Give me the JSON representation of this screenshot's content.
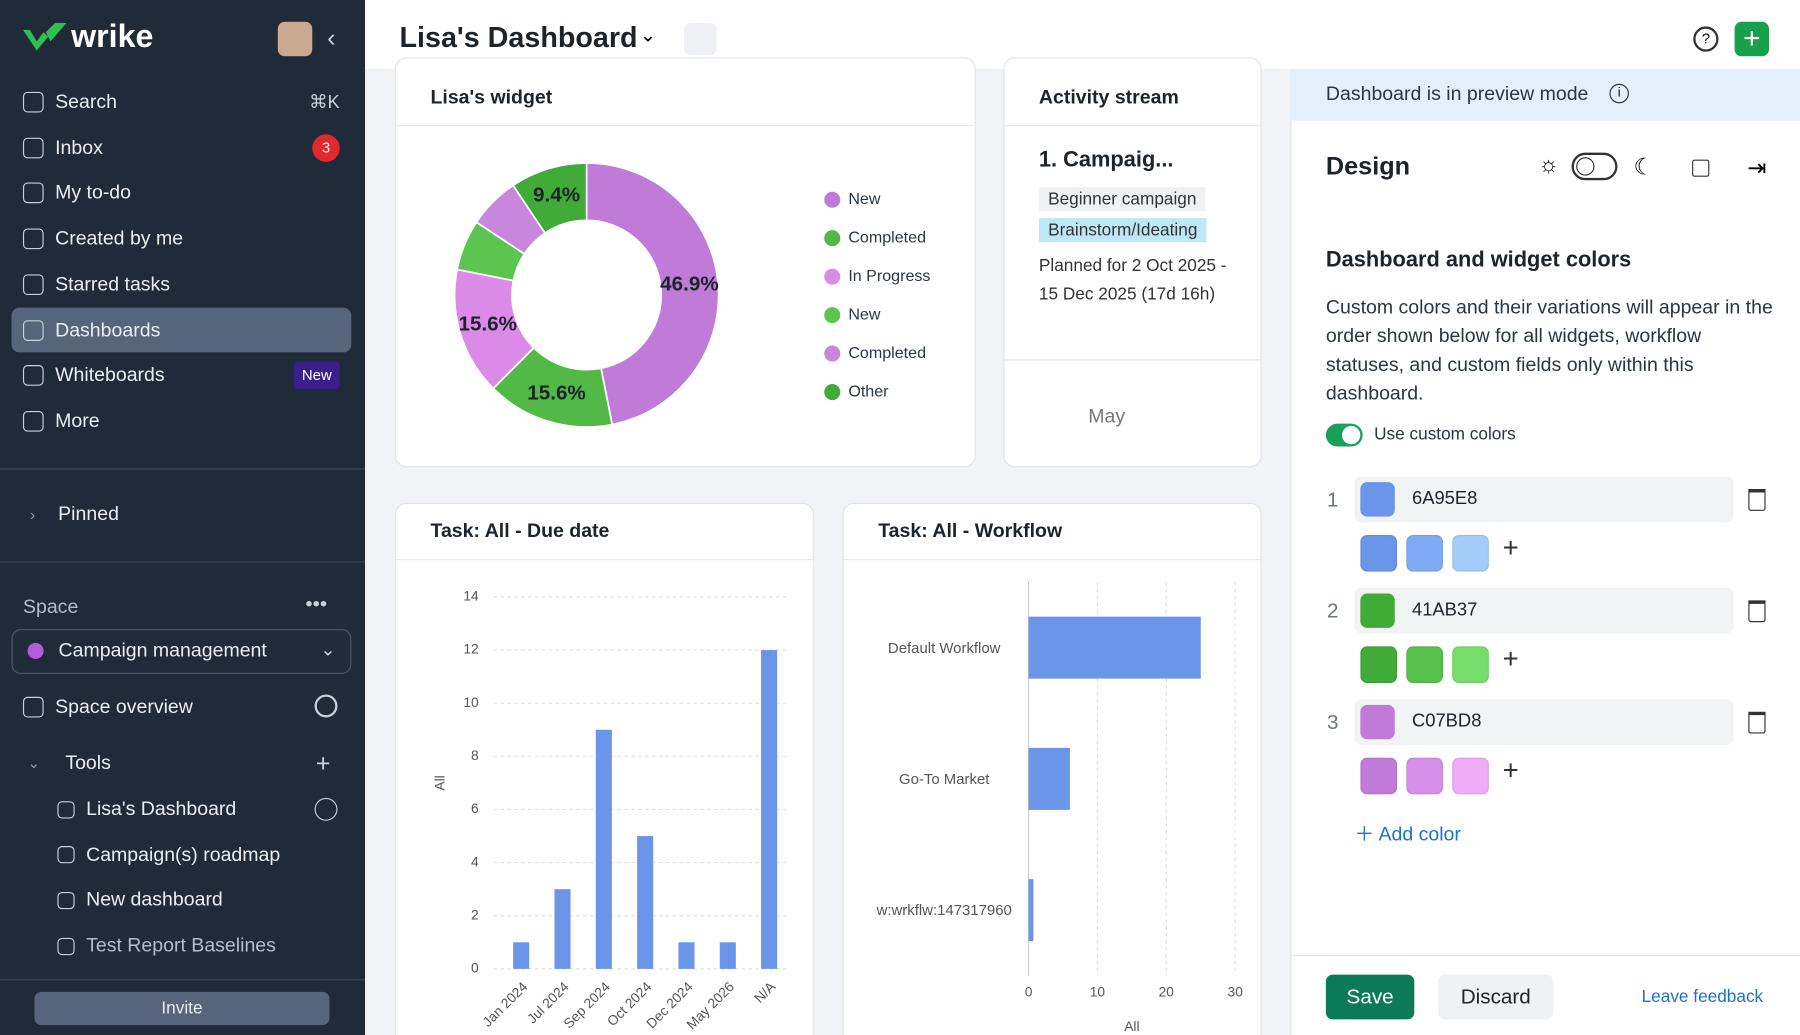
{
  "sidebar": {
    "brand": "wrike",
    "nav": [
      {
        "label": "Search",
        "shortcut": "⌘K"
      },
      {
        "label": "Inbox",
        "badge": "3"
      },
      {
        "label": "My to-do"
      },
      {
        "label": "Created by me"
      },
      {
        "label": "Starred tasks"
      },
      {
        "label": "Dashboards"
      },
      {
        "label": "Whiteboards",
        "badge": "New"
      },
      {
        "label": "More"
      }
    ],
    "pinned": "Pinned",
    "space_label": "Space",
    "space": "Campaign management",
    "space_overview": "Space overview",
    "tools": "Tools",
    "tool_items": [
      "Lisa's Dashboard",
      "Campaign(s) roadmap",
      "New dashboard",
      "Test Report Baselines"
    ],
    "invite": "Invite"
  },
  "header": {
    "title": "Lisa's Dashboard"
  },
  "activity": {
    "title": "Activity stream",
    "item": "1. Campaig...",
    "tags": [
      "Beginner campaign",
      "Brainstorm/Ideating"
    ],
    "planned": "Planned for 2 Oct 2025 - 15 Dec 2025 (17d 16h)",
    "month": "May"
  },
  "chart_data": [
    {
      "type": "pie",
      "title": "Lisa's widget",
      "categories": [
        "New",
        "Completed",
        "In Progress",
        "New",
        "Completed",
        "Other"
      ],
      "values": [
        46.9,
        15.6,
        15.6,
        6.2,
        6.3,
        9.4
      ],
      "value_labels": [
        "46.9%",
        "15.6%",
        "15.6%",
        null,
        null,
        "9.4%"
      ],
      "colors": [
        "#c07bd8",
        "#52b947",
        "#dc8ae8",
        "#5cc451",
        "#c886dc",
        "#41ab37"
      ]
    },
    {
      "type": "bar",
      "title": "Task: All - Due date",
      "categories": [
        "Jan 2024",
        "Jul 2024",
        "Sep 2024",
        "Oct 2024",
        "Dec 2024",
        "May 2026",
        "N/A"
      ],
      "values": [
        1,
        3,
        9,
        5,
        1,
        1,
        12
      ],
      "color": "#6a95e8",
      "ylim": [
        0,
        14
      ],
      "yticks": [
        0,
        2,
        4,
        6,
        8,
        10,
        12,
        14
      ],
      "y_label": "All",
      "grid": true
    },
    {
      "type": "hbar",
      "title": "Task: All - Workflow",
      "categories": [
        "Default Workflow",
        "Go-To Market",
        "w:wrkflw:147317960"
      ],
      "values": [
        25,
        6,
        0.7
      ],
      "color": "#6a95e8",
      "xlim": [
        0,
        30
      ],
      "xticks": [
        0,
        10,
        20,
        30
      ],
      "x_label": "All",
      "grid": true
    }
  ],
  "panel": {
    "banner": "Dashboard is in preview mode",
    "title": "Design",
    "heading": "Dashboard and widget colors",
    "description": "Custom colors and their variations will appear in the order shown below for all widgets, workflow statuses, and custom fields only within this dashboard.",
    "toggle": "Use custom colors",
    "colors": [
      {
        "index": 1,
        "hex": "6A95E8",
        "shades": [
          "#6a95e8",
          "#80aaf6",
          "#a4ccfa"
        ]
      },
      {
        "index": 2,
        "hex": "41AB37",
        "shades": [
          "#41ab37",
          "#57c04c",
          "#77de6c"
        ]
      },
      {
        "index": 3,
        "hex": "C07BD8",
        "shades": [
          "#c07bd8",
          "#d790ea",
          "#eeadf6"
        ]
      }
    ],
    "add_color": "Add color",
    "save": "Save",
    "discard": "Discard",
    "feedback": "Leave feedback"
  }
}
